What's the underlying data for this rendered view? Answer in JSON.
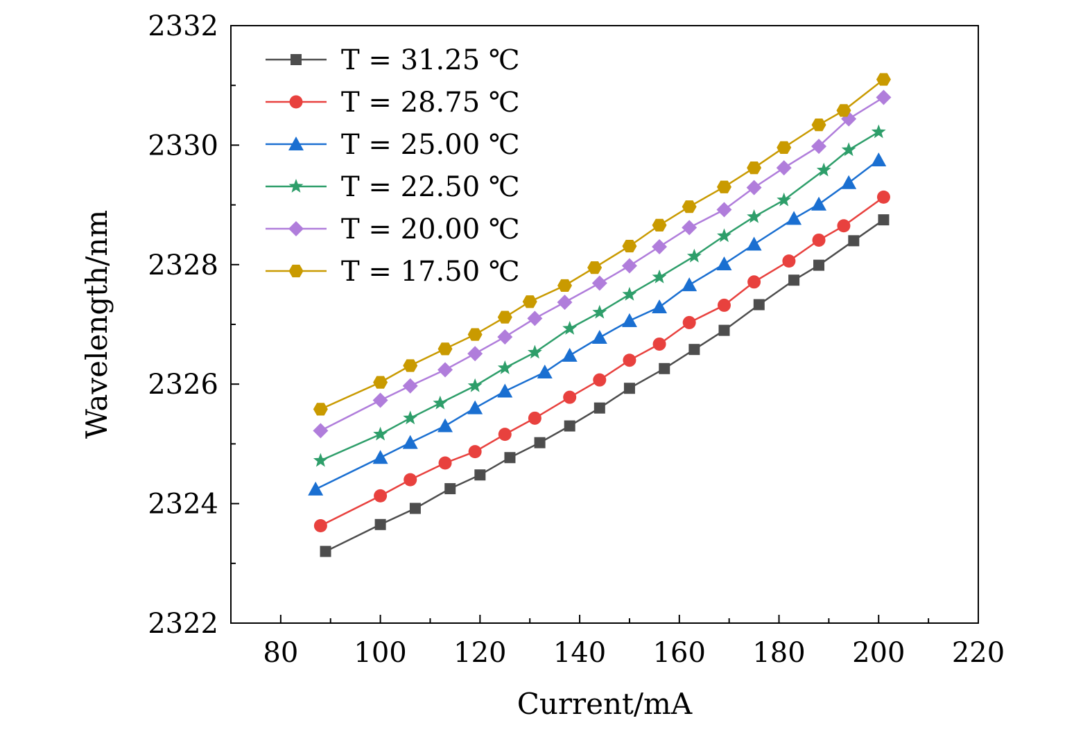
{
  "chart_data": {
    "type": "line",
    "xlabel": "Current/mA",
    "ylabel": "Wavelength/nm",
    "xlim": [
      70,
      220
    ],
    "ylim": [
      2322,
      2332
    ],
    "x_ticks": [
      80,
      100,
      120,
      140,
      160,
      180,
      200,
      220
    ],
    "y_ticks": [
      2322,
      2324,
      2326,
      2328,
      2330,
      2332
    ],
    "grid": false,
    "legend_position": "top-left",
    "series": [
      {
        "name": "T = 31.25 ℃",
        "color": "#4d4d4d",
        "marker": "square",
        "x": [
          89,
          100,
          107,
          114,
          120,
          126,
          132,
          138,
          144,
          150,
          157,
          163,
          169,
          176,
          183,
          188,
          195,
          201
        ],
        "y": [
          2323.2,
          2323.65,
          2323.92,
          2324.25,
          2324.48,
          2324.77,
          2325.02,
          2325.3,
          2325.6,
          2325.93,
          2326.26,
          2326.58,
          2326.9,
          2327.33,
          2327.74,
          2327.99,
          2328.4,
          2328.75
        ]
      },
      {
        "name": "T = 28.75 ℃",
        "color": "#e8413e",
        "marker": "circle",
        "x": [
          88,
          100,
          106,
          113,
          119,
          125,
          131,
          138,
          144,
          150,
          156,
          162,
          169,
          175,
          182,
          188,
          193,
          201
        ],
        "y": [
          2323.63,
          2324.13,
          2324.4,
          2324.68,
          2324.87,
          2325.16,
          2325.43,
          2325.78,
          2326.07,
          2326.4,
          2326.67,
          2327.03,
          2327.32,
          2327.71,
          2328.06,
          2328.41,
          2328.65,
          2329.13
        ]
      },
      {
        "name": "T = 25.00 ℃",
        "color": "#1a6fd1",
        "marker": "triangle",
        "x": [
          87,
          100,
          106,
          113,
          119,
          125,
          133,
          138,
          144,
          150,
          156,
          162,
          169,
          175,
          183,
          188,
          194,
          200
        ],
        "y": [
          2324.24,
          2324.77,
          2325.02,
          2325.3,
          2325.6,
          2325.88,
          2326.2,
          2326.48,
          2326.78,
          2327.06,
          2327.29,
          2327.66,
          2328.01,
          2328.34,
          2328.77,
          2329.01,
          2329.37,
          2329.75
        ]
      },
      {
        "name": "T = 22.50 ℃",
        "color": "#2e9e6a",
        "marker": "star",
        "x": [
          88,
          100,
          106,
          112,
          119,
          125,
          131,
          138,
          144,
          150,
          156,
          163,
          169,
          175,
          181,
          189,
          194,
          200
        ],
        "y": [
          2324.72,
          2325.16,
          2325.43,
          2325.68,
          2325.97,
          2326.27,
          2326.53,
          2326.93,
          2327.2,
          2327.5,
          2327.79,
          2328.14,
          2328.48,
          2328.8,
          2329.08,
          2329.58,
          2329.92,
          2330.22
        ]
      },
      {
        "name": "T = 20.00 ℃",
        "color": "#b07ddb",
        "marker": "diamond",
        "x": [
          88,
          100,
          106,
          113,
          119,
          125,
          131,
          137,
          144,
          150,
          156,
          162,
          169,
          175,
          181,
          188,
          194,
          201
        ],
        "y": [
          2325.22,
          2325.73,
          2325.97,
          2326.24,
          2326.51,
          2326.79,
          2327.1,
          2327.37,
          2327.69,
          2327.98,
          2328.3,
          2328.62,
          2328.92,
          2329.29,
          2329.62,
          2329.98,
          2330.44,
          2330.8
        ]
      },
      {
        "name": "T = 17.50 ℃",
        "color": "#c99a00",
        "marker": "hexagon",
        "x": [
          88,
          100,
          106,
          113,
          119,
          125,
          130,
          137,
          143,
          150,
          156,
          162,
          169,
          175,
          181,
          188,
          193,
          201
        ],
        "y": [
          2325.58,
          2326.03,
          2326.31,
          2326.59,
          2326.83,
          2327.12,
          2327.38,
          2327.65,
          2327.95,
          2328.31,
          2328.66,
          2328.97,
          2329.3,
          2329.62,
          2329.96,
          2330.34,
          2330.58,
          2331.1
        ]
      }
    ]
  }
}
